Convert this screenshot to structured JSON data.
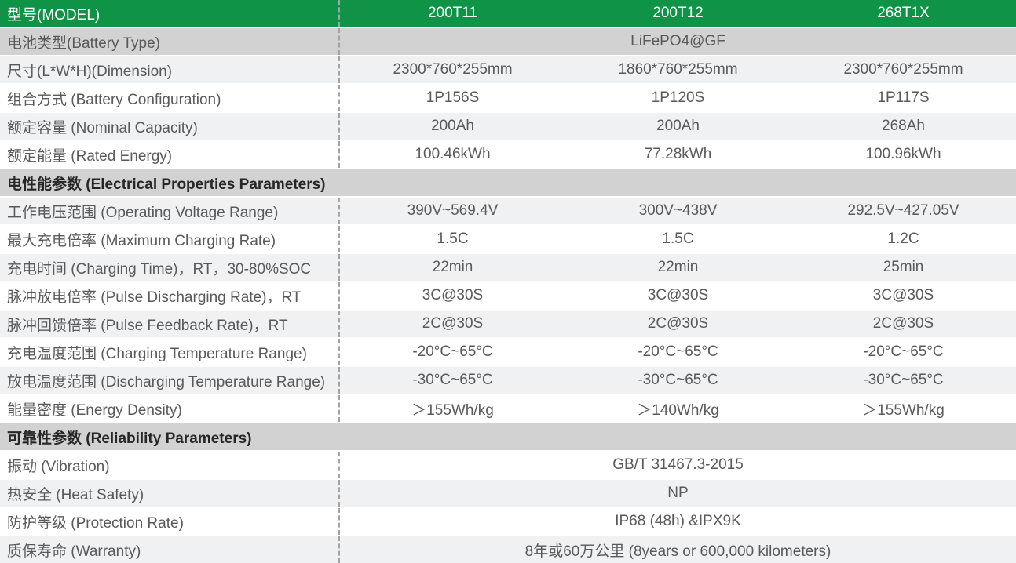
{
  "table": {
    "header": {
      "label": "型号(MODEL)",
      "columns": [
        "200T11",
        "200T12",
        "268T1X"
      ]
    },
    "rows": [
      {
        "type": "merged",
        "shade": "dark",
        "label": "电池类型(Battery Type)",
        "value": "LiFePO4@GF"
      },
      {
        "type": "data",
        "shade": "light",
        "label": "尺寸(L*W*H)(Dimension)",
        "values": [
          "2300*760*255mm",
          "1860*760*255mm",
          "2300*760*255mm"
        ]
      },
      {
        "type": "data",
        "shade": "white",
        "label": "组合方式 (Battery Configuration)",
        "values": [
          "1P156S",
          "1P120S",
          "1P117S"
        ]
      },
      {
        "type": "data",
        "shade": "light",
        "label": "额定容量 (Nominal Capacity)",
        "values": [
          "200Ah",
          "200Ah",
          "268Ah"
        ]
      },
      {
        "type": "data",
        "shade": "white",
        "label": "额定能量 (Rated Energy)",
        "values": [
          "100.46kWh",
          "77.28kWh",
          "100.96kWh"
        ]
      },
      {
        "type": "section",
        "label": "电性能参数 (Electrical Properties Parameters)"
      },
      {
        "type": "data",
        "shade": "light",
        "label": "工作电压范围 (Operating Voltage Range)",
        "values": [
          "390V~569.4V",
          "300V~438V",
          "292.5V~427.05V"
        ]
      },
      {
        "type": "data",
        "shade": "white",
        "label": "最大充电倍率 (Maximum Charging Rate)",
        "values": [
          "1.5C",
          "1.5C",
          "1.2C"
        ]
      },
      {
        "type": "data",
        "shade": "light",
        "label": "充电时间 (Charging Time)，RT，30-80%SOC",
        "values": [
          "22min",
          "22min",
          "25min"
        ]
      },
      {
        "type": "data",
        "shade": "white",
        "label": "脉冲放电倍率 (Pulse Discharging Rate)，RT",
        "values": [
          "3C@30S",
          "3C@30S",
          "3C@30S"
        ]
      },
      {
        "type": "data",
        "shade": "light",
        "label": "脉冲回馈倍率 (Pulse Feedback Rate)，RT",
        "values": [
          "2C@30S",
          "2C@30S",
          "2C@30S"
        ]
      },
      {
        "type": "data",
        "shade": "white",
        "label": "充电温度范围 (Charging Temperature Range)",
        "values": [
          "-20°C~65°C",
          "-20°C~65°C",
          "-20°C~65°C"
        ]
      },
      {
        "type": "data",
        "shade": "light",
        "label": "放电温度范围 (Discharging Temperature Range)",
        "values": [
          "-30°C~65°C",
          "-30°C~65°C",
          "-30°C~65°C"
        ]
      },
      {
        "type": "data",
        "shade": "white",
        "label": "能量密度 (Energy Density)",
        "values": [
          "＞155Wh/kg",
          "＞140Wh/kg",
          "＞155Wh/kg"
        ]
      },
      {
        "type": "section",
        "label": "可靠性参数 (Reliability Parameters)"
      },
      {
        "type": "merged",
        "shade": "white",
        "label": "振动 (Vibration)",
        "value": "GB/T 31467.3-2015"
      },
      {
        "type": "merged",
        "shade": "light",
        "label": "热安全 (Heat Safety)",
        "value": "NP"
      },
      {
        "type": "merged",
        "shade": "white",
        "label": "防护等级 (Protection Rate)",
        "value": "IP68 (48h) &IPX9K"
      },
      {
        "type": "merged",
        "shade": "light",
        "label": "质保寿命 (Warranty)",
        "value": "8年或60万公里 (8years or 600,000 kilometers)"
      }
    ],
    "colors": {
      "header_green": "#0f9347",
      "section_gray": "#d2d2d2",
      "row_light": "#f0f1f3",
      "row_white": "#ffffff",
      "text_gray": "#595959",
      "section_text": "#262626",
      "dash_gray": "#a3a3a3"
    }
  }
}
